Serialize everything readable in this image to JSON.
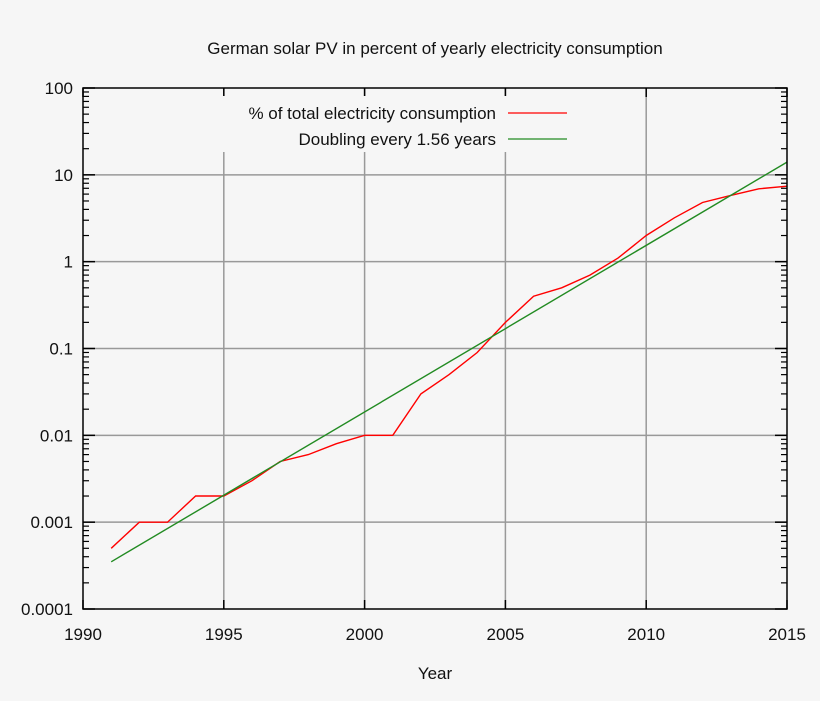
{
  "chart_data": {
    "type": "line",
    "title": "German solar PV in percent of yearly electricity consumption",
    "xlabel": "Year",
    "ylabel": "",
    "xlim": [
      1990,
      2015
    ],
    "ylim": [
      0.0001,
      100
    ],
    "yscale": "log",
    "grid": true,
    "legend_position": "top-left",
    "x_ticks": [
      "1990",
      "1995",
      "2000",
      "2005",
      "2010",
      "2015"
    ],
    "x_tick_values": [
      1990,
      1995,
      2000,
      2005,
      2010,
      2015
    ],
    "y_ticks": [
      "0.0001",
      "0.001",
      "0.01",
      "0.1",
      "1",
      "10",
      "100"
    ],
    "y_tick_values": [
      0.0001,
      0.001,
      0.01,
      0.1,
      1,
      10,
      100
    ],
    "series": [
      {
        "name": "% of total electricity consumption",
        "color": "#ff0000",
        "x": [
          1991,
          1992,
          1993,
          1994,
          1995,
          1996,
          1997,
          1998,
          1999,
          2000,
          2001,
          2002,
          2003,
          2004,
          2005,
          2006,
          2007,
          2008,
          2009,
          2010,
          2011,
          2012,
          2013,
          2014,
          2015
        ],
        "y": [
          0.0005,
          0.001,
          0.001,
          0.002,
          0.002,
          0.003,
          0.005,
          0.006,
          0.008,
          0.01,
          0.01,
          0.03,
          0.05,
          0.09,
          0.2,
          0.4,
          0.5,
          0.7,
          1.1,
          2,
          3.2,
          4.8,
          5.8,
          6.9,
          7.4
        ]
      },
      {
        "name": "Doubling every 1.56 years",
        "color": "#228b22",
        "x": [
          1991,
          2015
        ],
        "y": [
          0.00035,
          14
        ]
      }
    ]
  }
}
